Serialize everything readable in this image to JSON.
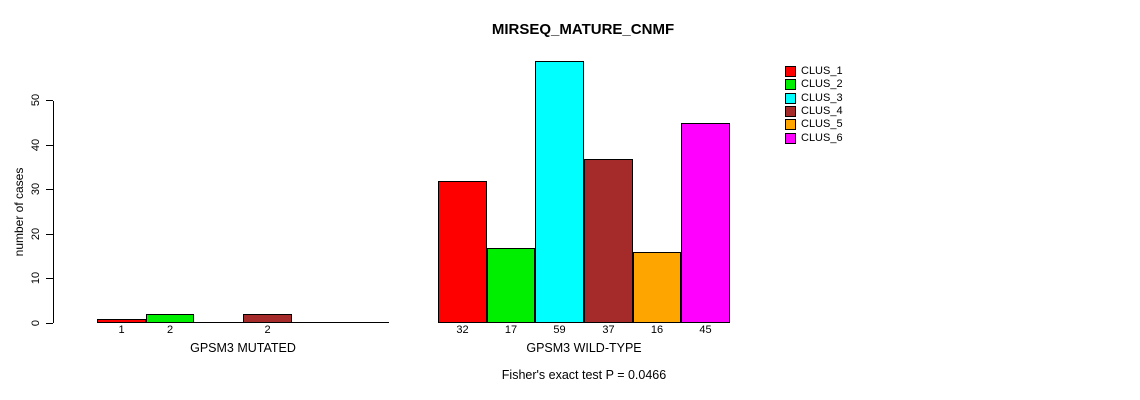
{
  "chart_data": {
    "type": "bar",
    "title": "MIRSEQ_MATURE_CNMF",
    "ylabel": "number of cases",
    "xlabel": "",
    "yticks": [
      0,
      10,
      20,
      30,
      40,
      50
    ],
    "ylim": [
      0,
      59
    ],
    "grid": false,
    "legend_position": "top-right",
    "clusters": [
      {
        "name": "CLUS_1",
        "color": "#ff0000"
      },
      {
        "name": "CLUS_2",
        "color": "#00ee00"
      },
      {
        "name": "CLUS_3",
        "color": "#00ffff"
      },
      {
        "name": "CLUS_4",
        "color": "#a52a2a"
      },
      {
        "name": "CLUS_5",
        "color": "#ffa500"
      },
      {
        "name": "CLUS_6",
        "color": "#ff00ff"
      }
    ],
    "groups": [
      {
        "label": "GPSM3 MUTATED",
        "values": [
          1,
          2,
          0,
          2,
          0,
          0
        ],
        "bar_labels": [
          "1",
          "2",
          "",
          "2",
          "",
          ""
        ]
      },
      {
        "label": "GPSM3 WILD-TYPE",
        "values": [
          32,
          17,
          59,
          37,
          16,
          45
        ],
        "bar_labels": [
          "32",
          "17",
          "59",
          "37",
          "16",
          "45"
        ]
      }
    ],
    "annotation": "Fisher's exact test P = 0.0466"
  },
  "colors": {
    "background": "#ffffff",
    "axis": "#000000",
    "bar_border": "#000000",
    "text": "#000000"
  }
}
